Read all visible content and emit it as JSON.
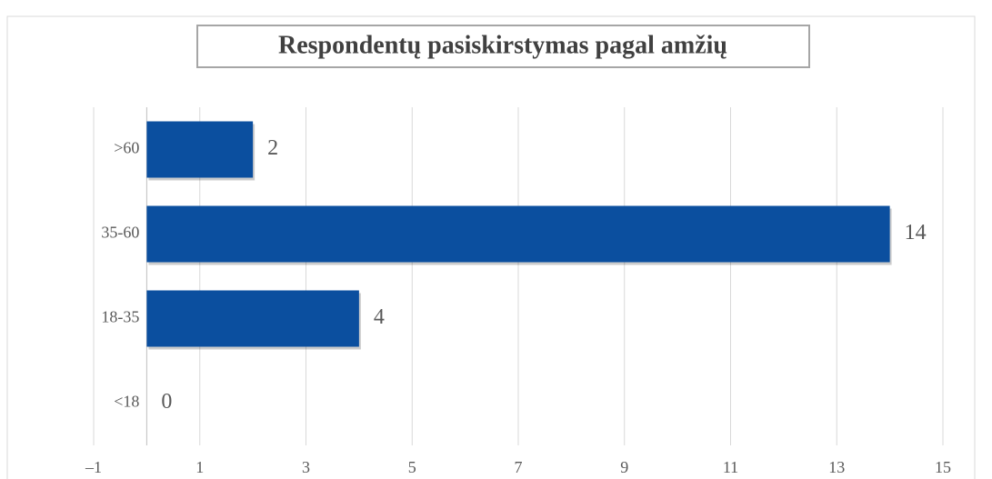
{
  "chart_data": {
    "type": "bar",
    "orientation": "horizontal",
    "title": "Respondentų pasiskirstymas pagal amžių",
    "categories": [
      "<18",
      "18-35",
      "35-60",
      ">60"
    ],
    "values": [
      0,
      4,
      14,
      2
    ],
    "color": "#0b4f9f",
    "xlim": [
      -1,
      15
    ],
    "xticks": [
      {
        "value": -1,
        "label": "–1"
      },
      1,
      3,
      5,
      7,
      9,
      11,
      13,
      15
    ],
    "grid": true
  }
}
